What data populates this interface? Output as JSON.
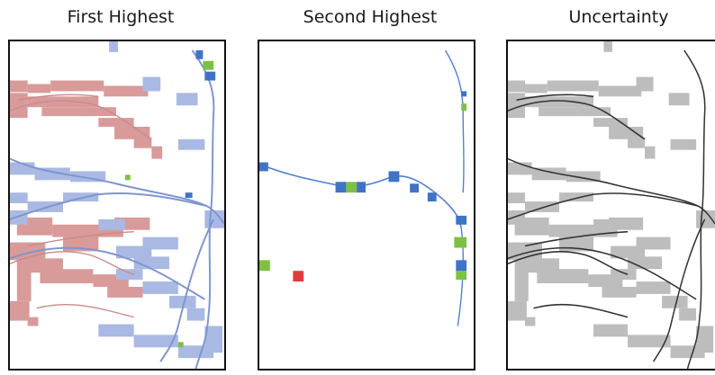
{
  "panels": [
    {
      "id": "first",
      "title": "First Highest"
    },
    {
      "id": "second",
      "title": "Second Highest"
    },
    {
      "id": "uncertainty",
      "title": "Uncertainty"
    }
  ],
  "colors": {
    "red": "#d99a9a",
    "blue": "#a9b9e3",
    "blue_line": "#7f95cf",
    "blue_dark": "#3f73c6",
    "green": "#7dc142",
    "red_strong": "#e23b3b",
    "gray": "#bdbdbd",
    "gray_line": "#333333"
  }
}
